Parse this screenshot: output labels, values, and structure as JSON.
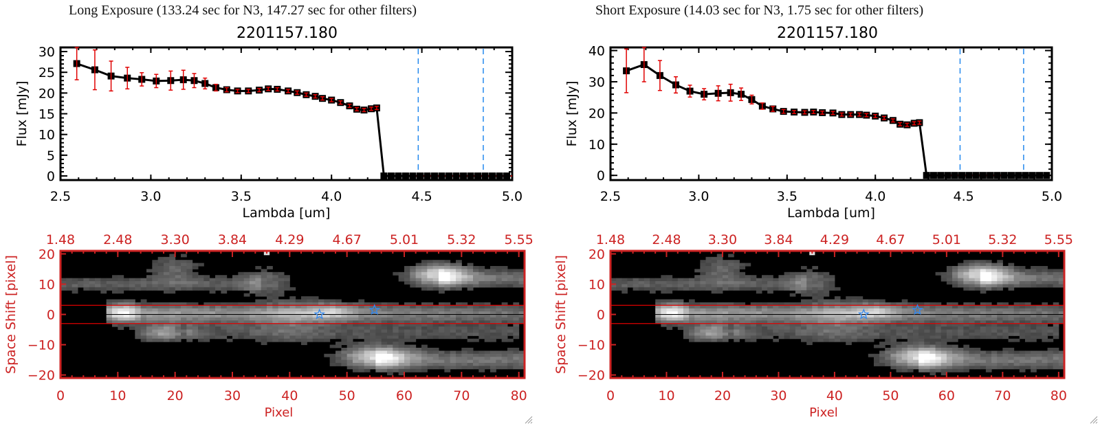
{
  "panels": [
    {
      "exposure_title": "Long Exposure (133.24 sec for N3, 147.27 sec for other filters)",
      "object_id": "2201157.180"
    },
    {
      "exposure_title": "Short Exposure (14.03 sec for N3, 1.75 sec for other filters)",
      "object_id": "2201157.180"
    }
  ],
  "colors": {
    "line": "#000000",
    "errorbar": "#e00000",
    "marker": "#000000",
    "vline": "#2288ee",
    "zero_line": "#e00000",
    "image_axes": "#cc2222",
    "star": "#3388ee"
  },
  "chart_data": [
    {
      "type": "line",
      "title": "2201157.180",
      "xlabel": "Lambda [um]",
      "ylabel": "Flux [mJy]",
      "xlim": [
        2.5,
        5.0
      ],
      "ylim": [
        -1,
        31
      ],
      "xticks": [
        2.5,
        3.0,
        3.5,
        4.0,
        4.5,
        5.0
      ],
      "xtick_labels": [
        "2.5",
        "3.0",
        "3.5",
        "4.0",
        "4.5",
        "5.0"
      ],
      "yticks": [
        0,
        5,
        10,
        15,
        20,
        25,
        30
      ],
      "ytick_labels": [
        "0",
        "5",
        "10",
        "15",
        "20",
        "25",
        "30"
      ],
      "vlines": [
        4.48,
        4.84
      ],
      "zero_line": [
        4.28,
        5.0
      ],
      "series": [
        {
          "name": "flux",
          "x": [
            2.59,
            2.69,
            2.78,
            2.87,
            2.95,
            3.03,
            3.11,
            3.18,
            3.24,
            3.3,
            3.36,
            3.42,
            3.48,
            3.54,
            3.6,
            3.65,
            3.7,
            3.76,
            3.81,
            3.86,
            3.91,
            3.95,
            4.0,
            4.05,
            4.1,
            4.14,
            4.18,
            4.22,
            4.25,
            4.29,
            4.33,
            4.37,
            4.41,
            4.45,
            4.49,
            4.53,
            4.57,
            4.61,
            4.65,
            4.69,
            4.73,
            4.77,
            4.81,
            4.85,
            4.89,
            4.93,
            4.97
          ],
          "y": [
            27.1,
            25.6,
            24.1,
            23.6,
            23.3,
            22.9,
            23.0,
            23.2,
            23.0,
            22.3,
            21.3,
            20.8,
            20.5,
            20.5,
            20.7,
            21.0,
            20.9,
            20.5,
            20.1,
            19.6,
            19.2,
            18.7,
            18.3,
            17.7,
            16.9,
            16.1,
            15.9,
            16.2,
            16.4,
            0,
            0,
            0,
            0,
            0,
            0,
            0,
            0,
            0,
            0,
            0,
            0,
            0,
            0,
            0,
            0,
            0,
            0
          ],
          "yerr": [
            3.9,
            4.8,
            3.6,
            2.6,
            1.6,
            1.6,
            2.3,
            2.3,
            1.7,
            1.3,
            0.8,
            0.5,
            0.4,
            0.4,
            0.4,
            0.4,
            0.4,
            0.4,
            0.4,
            0.4,
            0.4,
            0.4,
            0.4,
            0.4,
            0.4,
            0.4,
            0.4,
            0.4,
            0.4,
            0,
            0,
            0,
            0,
            0,
            0,
            0,
            0,
            0,
            0,
            0,
            0,
            0,
            0,
            0,
            0,
            0,
            0
          ]
        }
      ]
    },
    {
      "type": "line",
      "title": "2201157.180",
      "xlabel": "Lambda [um]",
      "ylabel": "Flux [mJy]",
      "xlim": [
        2.5,
        5.0
      ],
      "ylim": [
        -1.5,
        41
      ],
      "xticks": [
        2.5,
        3.0,
        3.5,
        4.0,
        4.5,
        5.0
      ],
      "xtick_labels": [
        "2.5",
        "3.0",
        "3.5",
        "4.0",
        "4.5",
        "5.0"
      ],
      "yticks": [
        0,
        10,
        20,
        30,
        40
      ],
      "ytick_labels": [
        "0",
        "10",
        "20",
        "30",
        "40"
      ],
      "vlines": [
        4.48,
        4.84
      ],
      "zero_line": [
        4.28,
        5.0
      ],
      "series": [
        {
          "name": "flux",
          "x": [
            2.59,
            2.69,
            2.78,
            2.87,
            2.95,
            3.03,
            3.11,
            3.18,
            3.24,
            3.3,
            3.36,
            3.42,
            3.48,
            3.54,
            3.6,
            3.65,
            3.7,
            3.76,
            3.81,
            3.86,
            3.91,
            3.95,
            4.0,
            4.05,
            4.1,
            4.14,
            4.18,
            4.22,
            4.25,
            4.29,
            4.33,
            4.37,
            4.41,
            4.45,
            4.49,
            4.53,
            4.57,
            4.61,
            4.65,
            4.69,
            4.73,
            4.77,
            4.81,
            4.85,
            4.89,
            4.93,
            4.97
          ],
          "y": [
            33.5,
            35.5,
            32.0,
            29.0,
            27.0,
            26.0,
            26.3,
            26.5,
            26.0,
            24.3,
            22.2,
            21.3,
            20.5,
            20.3,
            20.2,
            20.3,
            20.1,
            20.0,
            19.5,
            19.5,
            19.5,
            19.3,
            19.0,
            18.4,
            17.6,
            16.4,
            16.2,
            16.7,
            16.9,
            0,
            0,
            0,
            0,
            0,
            0,
            0,
            0,
            0,
            0,
            0,
            0,
            0,
            0,
            0,
            0,
            0,
            0
          ],
          "yerr": [
            7.0,
            5.5,
            4.8,
            2.6,
            1.9,
            1.8,
            2.4,
            2.7,
            2.0,
            1.4,
            1.0,
            0.8,
            0.6,
            0.5,
            0.5,
            0.5,
            0.5,
            0.5,
            0.5,
            0.5,
            0.5,
            0.5,
            0.5,
            0.5,
            0.5,
            0.5,
            0.5,
            0.5,
            0.5,
            0,
            0,
            0,
            0,
            0,
            0,
            0,
            0,
            0,
            0,
            0,
            0,
            0,
            0,
            0,
            0,
            0,
            0
          ]
        }
      ]
    },
    {
      "type": "heatmap",
      "title": "",
      "xlabel": "Pixel",
      "ylabel": "Space Shift [pixel]",
      "xlim": [
        0,
        81
      ],
      "ylim": [
        -21,
        21
      ],
      "xticks": [
        0,
        10,
        20,
        30,
        40,
        50,
        60,
        70,
        80
      ],
      "xtick_labels": [
        "0",
        "10",
        "20",
        "30",
        "40",
        "50",
        "60",
        "70",
        "80"
      ],
      "yticks": [
        -20,
        -10,
        0,
        10,
        20
      ],
      "ytick_labels": [
        "−20",
        "−10",
        "0",
        "10",
        "20"
      ],
      "top_ticks": [
        0,
        10,
        20,
        30,
        40,
        50,
        60,
        70,
        80
      ],
      "top_tick_labels": [
        "1.48",
        "2.48",
        "3.30",
        "3.84",
        "4.29",
        "4.67",
        "5.01",
        "5.32",
        "5.55"
      ],
      "aperture_lines": [
        3,
        -3
      ],
      "center_line": 0,
      "stars": [
        {
          "x": 45.2,
          "y": 0
        },
        {
          "x": 54.8,
          "y": 1.5
        }
      ]
    },
    {
      "type": "heatmap",
      "title": "",
      "xlabel": "Pixel",
      "ylabel": "Space Shift [pixel]",
      "xlim": [
        0,
        81
      ],
      "ylim": [
        -21,
        21
      ],
      "xticks": [
        0,
        10,
        20,
        30,
        40,
        50,
        60,
        70,
        80
      ],
      "xtick_labels": [
        "0",
        "10",
        "20",
        "30",
        "40",
        "50",
        "60",
        "70",
        "80"
      ],
      "yticks": [
        -20,
        -10,
        0,
        10,
        20
      ],
      "ytick_labels": [
        "−20",
        "−10",
        "0",
        "10",
        "20"
      ],
      "top_ticks": [
        0,
        10,
        20,
        30,
        40,
        50,
        60,
        70,
        80
      ],
      "top_tick_labels": [
        "1.48",
        "2.48",
        "3.30",
        "3.84",
        "4.29",
        "4.67",
        "5.01",
        "5.32",
        "5.55"
      ],
      "aperture_lines": [
        3,
        -3
      ],
      "center_line": 0,
      "stars": [
        {
          "x": 45.2,
          "y": 0
        },
        {
          "x": 54.8,
          "y": 1.5
        }
      ]
    }
  ]
}
